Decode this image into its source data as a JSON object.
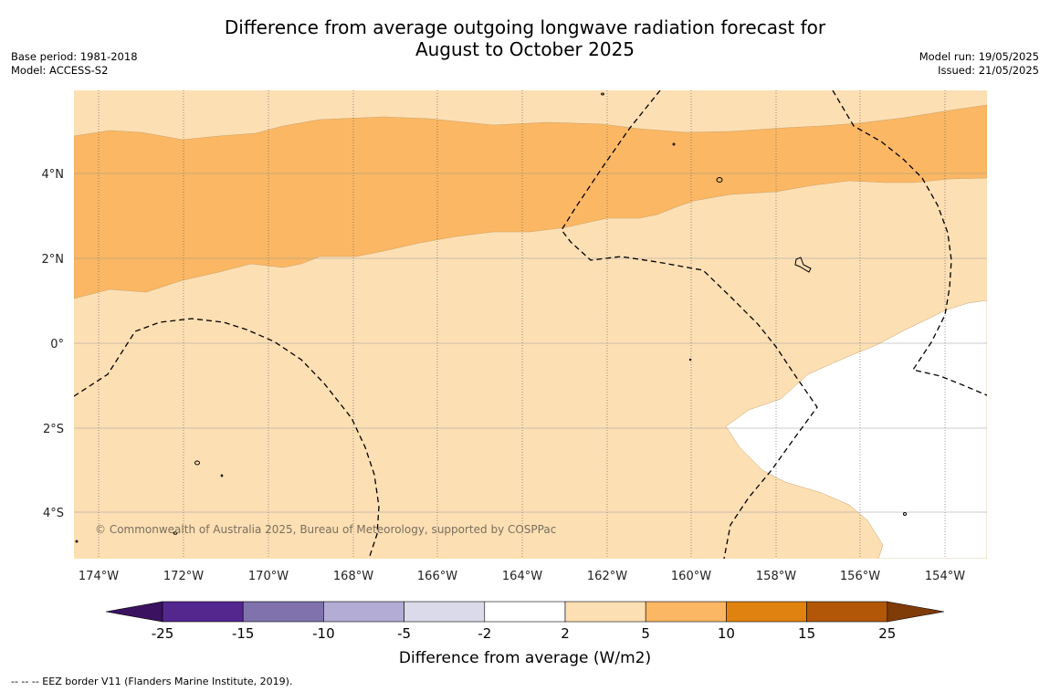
{
  "title_line1": "Difference from average outgoing longwave radiation forecast for",
  "title_line2": "August to October 2025",
  "base_period": "Base period: 1981-2018",
  "model": "Model: ACCESS-S2",
  "model_run": "Model run: 19/05/2025",
  "issued": "Issued: 21/05/2025",
  "copyright": "© Commonwealth of Australia 2025, Bureau of Meteorology, supported by COSPPac",
  "footnote": "--  --  -- EEZ border V11 (Flanders Marine Institute, 2019).",
  "lon_labels": [
    "174°W",
    "172°W",
    "170°W",
    "168°W",
    "166°W",
    "164°W",
    "162°W",
    "160°W",
    "158°W",
    "156°W",
    "154°W"
  ],
  "lat_labels": [
    "4°N",
    "2°N",
    "0°",
    "2°S",
    "4°S"
  ],
  "colorbar": {
    "title": "Difference from average (W/m2)",
    "tick_labels": [
      "-25",
      "-15",
      "-10",
      "-5",
      "-2",
      "2",
      "5",
      "10",
      "15",
      "25"
    ],
    "colors": [
      "#3b1260",
      "#54278f",
      "#7f72ad",
      "#b3acd5",
      "#dadaeb",
      "#ffffff",
      "#fddfb4",
      "#fbb763",
      "#e0820f",
      "#b25707",
      "#7f3b08"
    ]
  },
  "map_colors": {
    "light_orange": "#fddfb4",
    "orange": "#fbb763",
    "white": "#ffffff"
  }
}
